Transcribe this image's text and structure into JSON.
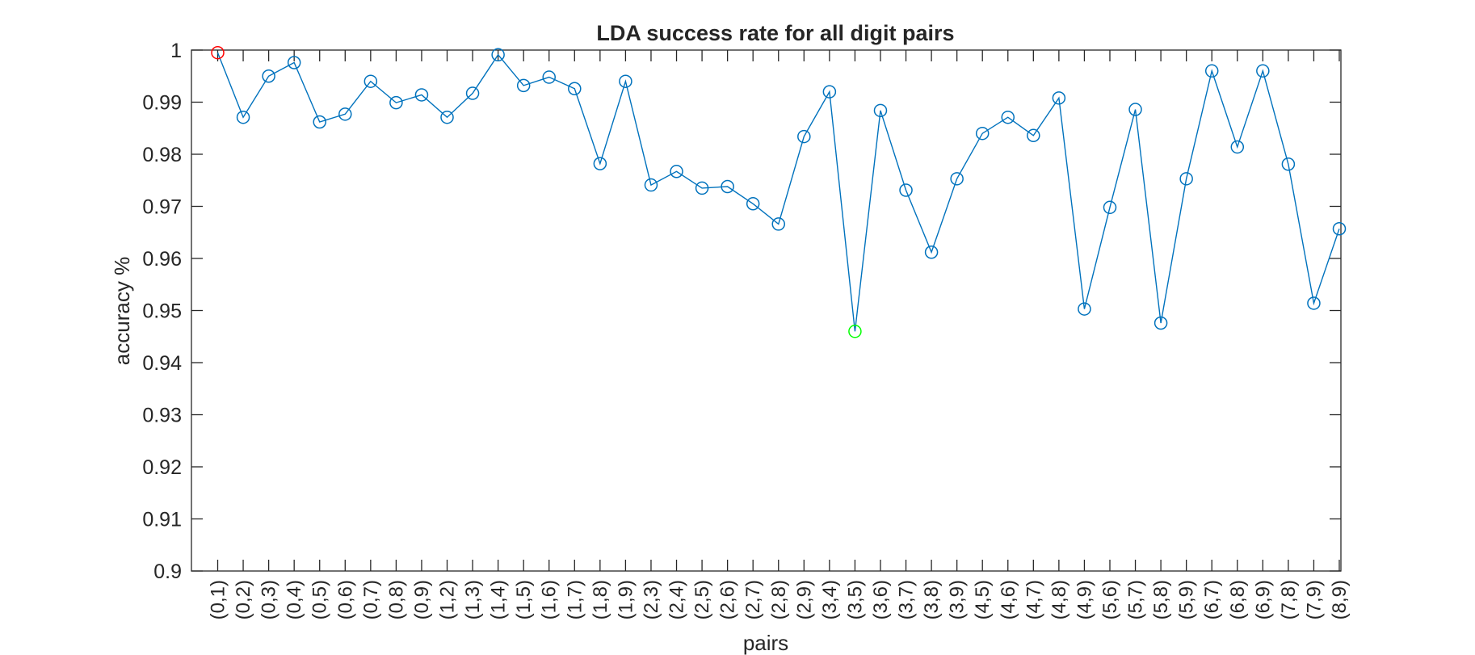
{
  "chart_data": {
    "type": "line",
    "title": "LDA success rate for all digit pairs",
    "xlabel": "pairs",
    "ylabel": "accuracy %",
    "ylim": [
      0.9,
      1
    ],
    "yticks": [
      "0.9",
      "0.91",
      "0.92",
      "0.93",
      "0.94",
      "0.95",
      "0.96",
      "0.97",
      "0.98",
      "0.99",
      "1"
    ],
    "categories": [
      "(0,1)",
      "(0,2)",
      "(0,3)",
      "(0,4)",
      "(0,5)",
      "(0,6)",
      "(0,7)",
      "(0,8)",
      "(0,9)",
      "(1,2)",
      "(1,3)",
      "(1,4)",
      "(1,5)",
      "(1,6)",
      "(1,7)",
      "(1,8)",
      "(1,9)",
      "(2,3)",
      "(2,4)",
      "(2,5)",
      "(2,6)",
      "(2,7)",
      "(2,8)",
      "(2,9)",
      "(3,4)",
      "(3,5)",
      "(3,6)",
      "(3,7)",
      "(3,8)",
      "(3,9)",
      "(4,5)",
      "(4,6)",
      "(4,7)",
      "(4,8)",
      "(4,9)",
      "(5,6)",
      "(5,7)",
      "(5,8)",
      "(5,9)",
      "(6,7)",
      "(6,8)",
      "(6,9)",
      "(7,8)",
      "(7,9)",
      "(8,9)"
    ],
    "values": [
      0.9995,
      0.9871,
      0.995,
      0.9976,
      0.9862,
      0.9877,
      0.994,
      0.9899,
      0.9914,
      0.9871,
      0.9917,
      0.9991,
      0.9932,
      0.9948,
      0.9926,
      0.9782,
      0.994,
      0.9741,
      0.9767,
      0.9735,
      0.9738,
      0.9705,
      0.9666,
      0.9834,
      0.992,
      0.946,
      0.9884,
      0.9731,
      0.9612,
      0.9753,
      0.984,
      0.9871,
      0.9836,
      0.9908,
      0.9503,
      0.9698,
      0.9886,
      0.9476,
      0.9753,
      0.996,
      0.9814,
      0.996,
      0.9781,
      0.9514,
      0.9657
    ],
    "max_index": 0,
    "min_index": 25,
    "grid": false,
    "colors": {
      "line": "#0072BD",
      "max_marker": "#FF0000",
      "min_marker": "#00FF00",
      "axis": "#262626"
    }
  }
}
